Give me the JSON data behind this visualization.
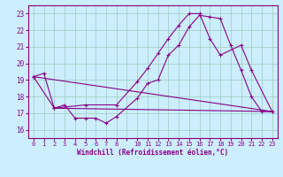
{
  "xlabel": "Windchill (Refroidissement éolien,°C)",
  "bg_color": "#cceeff",
  "line_color": "#880088",
  "grid_color": "#99ccbb",
  "ylim": [
    15.5,
    23.5
  ],
  "xlim": [
    -0.5,
    23.5
  ],
  "yticks": [
    16,
    17,
    18,
    19,
    20,
    21,
    22,
    23
  ],
  "xtick_positions": [
    0,
    1,
    2,
    3,
    4,
    5,
    6,
    7,
    8,
    9,
    10,
    11,
    12,
    13,
    14,
    15,
    16,
    17,
    18,
    19,
    20,
    21,
    22,
    23
  ],
  "xtick_labels": [
    "0",
    "1",
    "2",
    "3",
    "4",
    "5",
    "6",
    "7",
    "8",
    "",
    "10",
    "11",
    "12",
    "13",
    "14",
    "15",
    "16",
    "17",
    "18",
    "19",
    "20",
    "21",
    "22",
    "23"
  ],
  "series1_x": [
    0,
    1,
    2,
    3,
    4,
    5,
    6,
    7,
    8,
    10,
    11,
    12,
    13,
    14,
    15,
    16,
    17,
    18,
    19,
    20,
    21,
    22,
    23
  ],
  "series1_y": [
    19.2,
    19.4,
    17.3,
    17.5,
    16.7,
    16.7,
    16.7,
    16.4,
    16.8,
    17.9,
    18.8,
    19.0,
    20.5,
    21.1,
    22.2,
    22.9,
    22.8,
    22.7,
    21.1,
    19.6,
    18.0,
    17.1,
    17.1
  ],
  "series2_x": [
    0,
    2,
    5,
    8,
    10,
    11,
    12,
    13,
    14,
    15,
    16,
    17,
    18,
    20,
    21,
    23
  ],
  "series2_y": [
    19.2,
    17.3,
    17.5,
    17.5,
    18.9,
    19.7,
    20.6,
    21.5,
    22.3,
    23.0,
    23.0,
    21.5,
    20.5,
    21.1,
    19.6,
    17.1
  ],
  "series3_x": [
    0,
    23
  ],
  "series3_y": [
    19.2,
    17.1
  ],
  "series4_x": [
    2,
    23
  ],
  "series4_y": [
    17.3,
    17.1
  ]
}
